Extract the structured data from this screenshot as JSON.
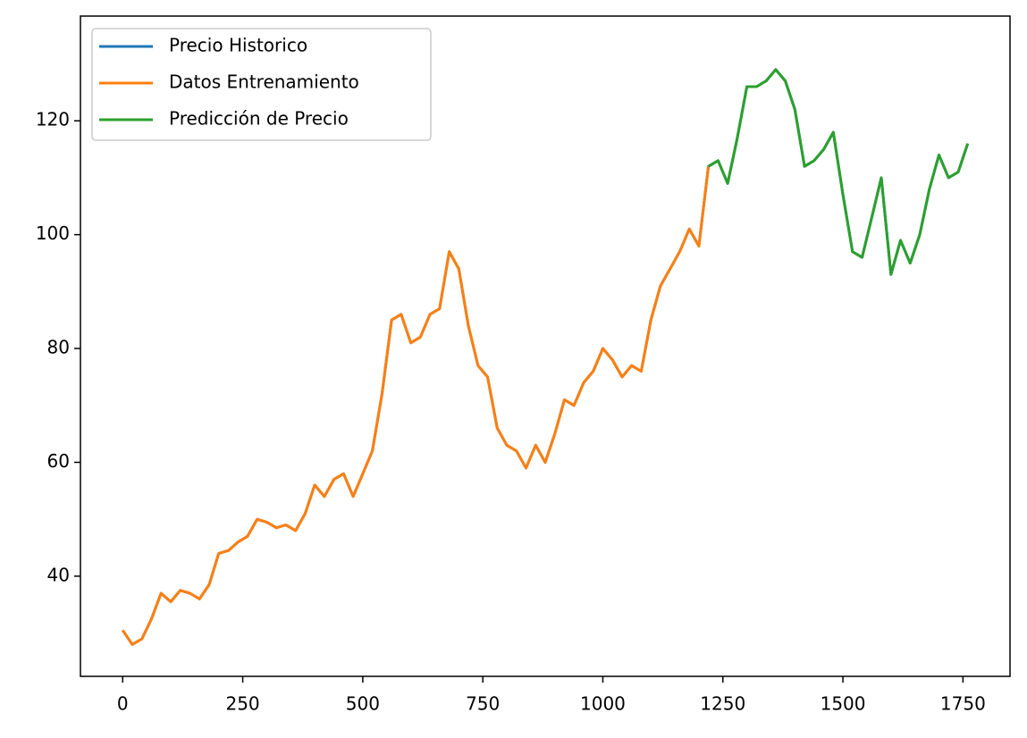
{
  "chart_data": {
    "type": "line",
    "x": [
      0,
      20,
      40,
      60,
      80,
      100,
      120,
      140,
      160,
      180,
      200,
      220,
      240,
      260,
      280,
      300,
      320,
      340,
      360,
      380,
      400,
      420,
      440,
      460,
      480,
      500,
      520,
      540,
      560,
      580,
      600,
      620,
      640,
      660,
      680,
      700,
      720,
      740,
      760,
      780,
      800,
      820,
      840,
      860,
      880,
      900,
      920,
      940,
      960,
      980,
      1000,
      1020,
      1040,
      1060,
      1080,
      1100,
      1120,
      1140,
      1160,
      1180,
      1200,
      1220,
      1240,
      1260,
      1280,
      1300,
      1320,
      1340,
      1360,
      1380,
      1400,
      1420,
      1440,
      1460,
      1480,
      1500,
      1520,
      1540,
      1560,
      1580,
      1600,
      1620,
      1640,
      1660,
      1680,
      1700,
      1720,
      1740,
      1760
    ],
    "series": [
      {
        "name": "Precio Historico",
        "color": "#1f77b4",
        "values": [
          30.5,
          28,
          29,
          32.5,
          37,
          35.5,
          37.5,
          37,
          36,
          38.5,
          44,
          44.5,
          46,
          47,
          50,
          49.5,
          48.5,
          49,
          48,
          51,
          56,
          54,
          57,
          58,
          54,
          58,
          62,
          72,
          85,
          86,
          81,
          82,
          86,
          87,
          97,
          94,
          84,
          77,
          75,
          66,
          63,
          62,
          59,
          63,
          60,
          65,
          71,
          70,
          74,
          76,
          80,
          78,
          75,
          77,
          76,
          85,
          91,
          94,
          97,
          101,
          98,
          112,
          113,
          109,
          117,
          126,
          126,
          127,
          129,
          127,
          122,
          112,
          113,
          115,
          118,
          107,
          97,
          96,
          103,
          110,
          93,
          99,
          95,
          100,
          108,
          114,
          110,
          111,
          116
        ]
      },
      {
        "name": "Datos Entrenamiento",
        "color": "#ff7f0e",
        "values": [
          30.5,
          28,
          29,
          32.5,
          37,
          35.5,
          37.5,
          37,
          36,
          38.5,
          44,
          44.5,
          46,
          47,
          50,
          49.5,
          48.5,
          49,
          48,
          51,
          56,
          54,
          57,
          58,
          54,
          58,
          62,
          72,
          85,
          86,
          81,
          82,
          86,
          87,
          97,
          94,
          84,
          77,
          75,
          66,
          63,
          62,
          59,
          63,
          60,
          65,
          71,
          70,
          74,
          76,
          80,
          78,
          75,
          77,
          76,
          85,
          91,
          94,
          97,
          101,
          98,
          112,
          null,
          null,
          null,
          null,
          null,
          null,
          null,
          null,
          null,
          null,
          null,
          null,
          null,
          null,
          null,
          null,
          null,
          null,
          null,
          null,
          null,
          null,
          null,
          null,
          null,
          null,
          null
        ]
      },
      {
        "name": "Predicción de Precio",
        "color": "#2ca02c",
        "values": [
          null,
          null,
          null,
          null,
          null,
          null,
          null,
          null,
          null,
          null,
          null,
          null,
          null,
          null,
          null,
          null,
          null,
          null,
          null,
          null,
          null,
          null,
          null,
          null,
          null,
          null,
          null,
          null,
          null,
          null,
          null,
          null,
          null,
          null,
          null,
          null,
          null,
          null,
          null,
          null,
          null,
          null,
          null,
          null,
          null,
          null,
          null,
          null,
          null,
          null,
          null,
          null,
          null,
          null,
          null,
          null,
          null,
          null,
          null,
          null,
          null,
          112,
          113,
          109,
          117,
          126,
          126,
          127,
          129,
          127,
          122,
          112,
          113,
          115,
          118,
          107,
          97,
          96,
          103,
          110,
          93,
          99,
          95,
          100,
          108,
          114,
          110,
          111,
          116
        ]
      }
    ],
    "xlim": [
      -88,
      1848
    ],
    "ylim": [
      22.4,
      138.4
    ],
    "xticks": [
      0,
      250,
      500,
      750,
      1000,
      1250,
      1500,
      1750
    ],
    "yticks": [
      40,
      60,
      80,
      100,
      120
    ],
    "grid": false,
    "legend": "upper-left"
  }
}
